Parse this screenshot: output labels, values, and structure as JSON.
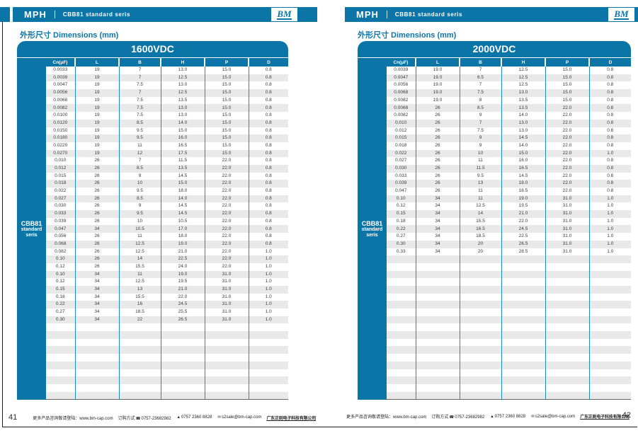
{
  "colors": {
    "accent": "#0c75a8",
    "row_alt": "#e9e9e9",
    "grid_line": "#1e8bbd"
  },
  "footer": {
    "info": "更多产品咨询敬请登陆：www.bm-cap.com",
    "order_label": "订购方式",
    "phone_icon": "☎",
    "phone": "0757-23682982",
    "fax_icon": "▲",
    "fax": "0757 2360 8828",
    "mail_icon": "✉",
    "email": "s2sale@bm-cap.com",
    "company": "广东正则电子科技有限公司"
  },
  "page_left": {
    "page_number": "41",
    "header": {
      "brand": "MPH",
      "series": "CBB81 standard seris",
      "logo": "BM"
    },
    "section_title": "外形尺寸 Dimensions (mm)",
    "table": {
      "title": "1600VDC",
      "sidebar": [
        "CBB81",
        "standard",
        "seris"
      ],
      "columns": [
        "Cn(μF)",
        "L",
        "B",
        "H",
        "P",
        "D"
      ],
      "empty_rows": 10,
      "rows": [
        [
          "0.0033",
          "19",
          "7",
          "13.0",
          "15.0",
          "0.8"
        ],
        [
          "0.0039",
          "19",
          "7",
          "12.5",
          "15.0",
          "0.8"
        ],
        [
          "0.0047",
          "19",
          "7.5",
          "13.0",
          "15.0",
          "0.8"
        ],
        [
          "0.0056",
          "19",
          "7",
          "12.5",
          "15.0",
          "0.8"
        ],
        [
          "0.0068",
          "19",
          "7.5",
          "13.5",
          "15.0",
          "0.8"
        ],
        [
          "0.0082",
          "19",
          "7.5",
          "13.0",
          "15.0",
          "0.8"
        ],
        [
          "0.0100",
          "19",
          "7.5",
          "13.0",
          "15.0",
          "0.8"
        ],
        [
          "0.0120",
          "19",
          "8.5",
          "14.0",
          "15.0",
          "0.8"
        ],
        [
          "0.0150",
          "19",
          "9.5",
          "15.0",
          "15.0",
          "0.8"
        ],
        [
          "0.0180",
          "19",
          "9.5",
          "16.0",
          "15.0",
          "0.8"
        ],
        [
          "0.0220",
          "19",
          "11",
          "16.5",
          "15.0",
          "0.8"
        ],
        [
          "0.0270",
          "19",
          "12",
          "17.5",
          "15.0",
          "0.8"
        ],
        [
          "0.010",
          "26",
          "7",
          "11.5",
          "22.0",
          "0.8"
        ],
        [
          "0.012",
          "26",
          "8.5",
          "13.5",
          "22.0",
          "0.8"
        ],
        [
          "0.015",
          "26",
          "9",
          "14.5",
          "22.0",
          "0.8"
        ],
        [
          "0.018",
          "26",
          "10",
          "15.0",
          "22.0",
          "0.8"
        ],
        [
          "0.022",
          "26",
          "9.5",
          "18.0",
          "22.0",
          "0.8"
        ],
        [
          "0.027",
          "26",
          "8.5",
          "14.0",
          "22.0",
          "0.8"
        ],
        [
          "0.030",
          "26",
          "9",
          "14.5",
          "22.0",
          "0.8"
        ],
        [
          "0.033",
          "26",
          "9.5",
          "14.5",
          "22.0",
          "0.8"
        ],
        [
          "0.039",
          "26",
          "10",
          "10.5",
          "22.0",
          "0.8"
        ],
        [
          "0.047",
          "34",
          "10.5",
          "17.0",
          "22.0",
          "0.8"
        ],
        [
          "0.056",
          "26",
          "11",
          "18.0",
          "22.0",
          "0.8"
        ],
        [
          "0.068",
          "26",
          "12.5",
          "19.0",
          "22.0",
          "0.8"
        ],
        [
          "0.082",
          "26",
          "12.5",
          "21.0",
          "22.0",
          "1.0"
        ],
        [
          "0.10",
          "26",
          "14",
          "22.5",
          "22.0",
          "1.0"
        ],
        [
          "0.12",
          "26",
          "15.5",
          "24.0",
          "22.0",
          "1.0"
        ],
        [
          "0.10",
          "34",
          "11",
          "19.0",
          "31.0",
          "1.0"
        ],
        [
          "0.12",
          "34",
          "12.5",
          "19.5",
          "31.0",
          "1.0"
        ],
        [
          "0.15",
          "34",
          "13",
          "21.0",
          "31.0",
          "1.0"
        ],
        [
          "0.18",
          "34",
          "15.5",
          "22.0",
          "31.0",
          "1.0"
        ],
        [
          "0.22",
          "34",
          "16",
          "24.5",
          "31.0",
          "1.0"
        ],
        [
          "0.27",
          "34",
          "18.5",
          "25.5",
          "31.0",
          "1.0"
        ],
        [
          "0.30",
          "34",
          "22",
          "26.5",
          "31.0",
          "1.0"
        ]
      ]
    }
  },
  "page_right": {
    "page_number": "42",
    "header": {
      "brand": "MPH",
      "series": "CBB81 standard seris",
      "logo": "BM"
    },
    "section_title": "外形尺寸 Dimensions (mm)",
    "table": {
      "title": "2000VDC",
      "sidebar": [
        "CBB81",
        "standard",
        "seris"
      ],
      "columns": [
        "Cn(μF)",
        "L",
        "B",
        "H",
        "P",
        "D"
      ],
      "empty_rows": 19,
      "rows": [
        [
          "0.0039",
          "19.0",
          "7",
          "12.5",
          "15.0",
          "0.8"
        ],
        [
          "0.0047",
          "19.0",
          "6.5",
          "12.5",
          "15.0",
          "0.8"
        ],
        [
          "0.0056",
          "19.0",
          "7",
          "12.5",
          "15.0",
          "0.8"
        ],
        [
          "0.0068",
          "19.0",
          "7.5",
          "13.0",
          "15.0",
          "0.8"
        ],
        [
          "0.0082",
          "19.0",
          "8",
          "13.5",
          "15.0",
          "0.8"
        ],
        [
          "0.0068",
          "26",
          "8.5",
          "13.5",
          "22.0",
          "0.8"
        ],
        [
          "0.0082",
          "26",
          "9",
          "14.0",
          "22.0",
          "0.8"
        ],
        [
          "0.010",
          "26",
          "7",
          "13.0",
          "22.0",
          "0.8"
        ],
        [
          "0.012",
          "26",
          "7.5",
          "13.0",
          "22.0",
          "0.8"
        ],
        [
          "0.015",
          "26",
          "9",
          "14.5",
          "22.0",
          "0.8"
        ],
        [
          "0.018",
          "26",
          "9",
          "14.0",
          "22.0",
          "0.8"
        ],
        [
          "0.022",
          "26",
          "10",
          "15.0",
          "22.0",
          "1.0"
        ],
        [
          "0.027",
          "26",
          "11",
          "16.0",
          "22.0",
          "0.8"
        ],
        [
          "0.030",
          "26",
          "11.5",
          "16.5",
          "22.0",
          "0.8"
        ],
        [
          "0.033",
          "26",
          "9.5",
          "14.5",
          "22.0",
          "0.8"
        ],
        [
          "0.039",
          "26",
          "13",
          "18.0",
          "22.0",
          "0.8"
        ],
        [
          "0.047",
          "26",
          "11",
          "16.5",
          "22.0",
          "0.8"
        ],
        [
          "0.10",
          "34",
          "11",
          "19.0",
          "31.0",
          "1.0"
        ],
        [
          "0.12",
          "34",
          "12.5",
          "19.5",
          "31.0",
          "1.0"
        ],
        [
          "0.15",
          "34",
          "14",
          "21.0",
          "31.0",
          "1.0"
        ],
        [
          "0.18",
          "34",
          "15.5",
          "22.0",
          "31.0",
          "1.0"
        ],
        [
          "0.22",
          "34",
          "16.5",
          "24.5",
          "31.0",
          "1.0"
        ],
        [
          "0.27",
          "34",
          "18.5",
          "22.5",
          "31.0",
          "1.0"
        ],
        [
          "0.30",
          "34",
          "20",
          "26.5",
          "31.0",
          "1.0"
        ],
        [
          "0.33",
          "34",
          "20",
          "28.5",
          "31.0",
          "1.0"
        ]
      ]
    }
  }
}
